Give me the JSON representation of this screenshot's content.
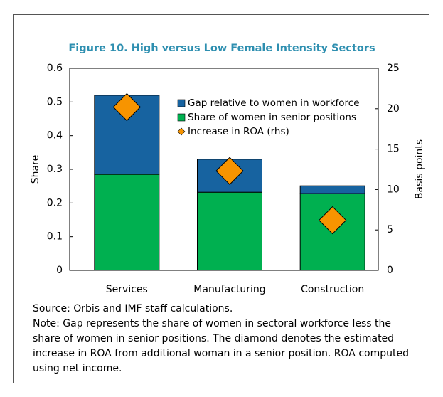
{
  "chart_data": {
    "type": "stacked-bar-with-markers",
    "title": "Figure 10. High versus Low Female Intensity Sectors",
    "y_label": "Share",
    "y2_label": "Basis points",
    "categories": [
      "Services",
      "Manufacturing",
      "Construction"
    ],
    "series": [
      {
        "name": "Share of women in senior positions",
        "color": "#00b050",
        "values": [
          0.285,
          0.232,
          0.228
        ]
      },
      {
        "name": "Gap relative to women in workforce",
        "color": "#1763a0",
        "values": [
          0.235,
          0.098,
          0.023
        ]
      },
      {
        "name": "Increase in ROA (rhs)",
        "color": "#f79400",
        "axis": "y2",
        "values": [
          20.2,
          12.3,
          6.2
        ]
      }
    ],
    "legend_order": [
      1,
      0,
      2
    ],
    "ylim": [
      0,
      0.6
    ],
    "yticks": [
      0,
      0.1,
      0.2,
      0.3,
      0.4,
      0.5,
      0.6
    ],
    "y2lim": [
      0,
      25
    ],
    "y2ticks": [
      0,
      5,
      10,
      15,
      20,
      25
    ],
    "source": "Source: Orbis and IMF staff calculations.",
    "note": "Note: Gap represents the share of women in sectoral workforce less the share of women in senior positions. The diamond denotes the estimated increase in ROA from additional woman in a senior position. ROA computed using net income."
  }
}
